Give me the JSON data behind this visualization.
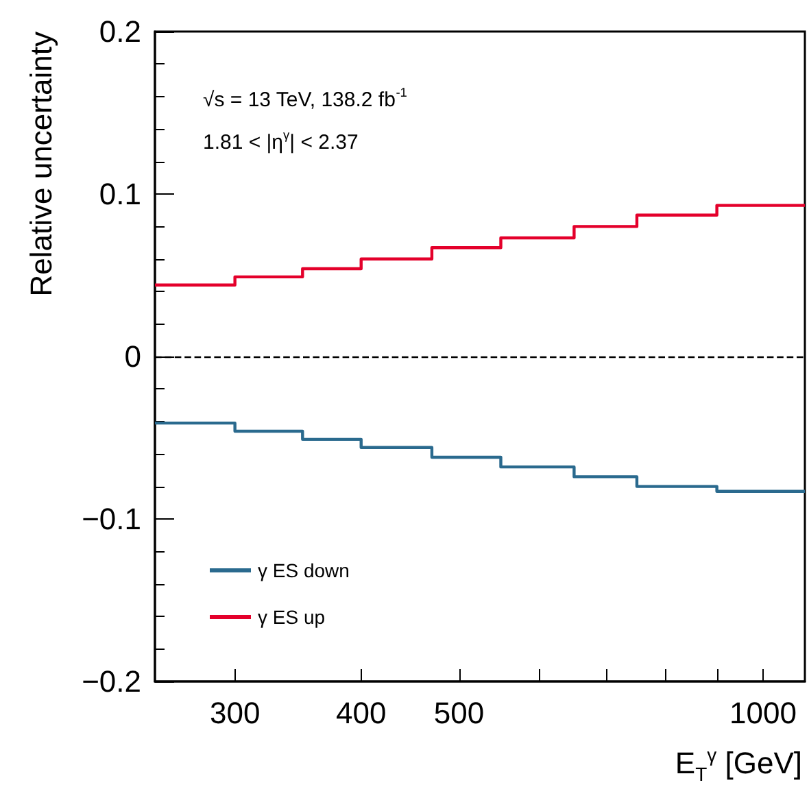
{
  "chart_data": {
    "type": "histogram",
    "xlabel": "E$_{T}$$^{γ}$ [GeV]",
    "ylabel": "Relative uncertainty",
    "annotations": [
      "√s = 13 TeV, 138.2 fb$^{-1}$",
      "1.81 < |η$^{γ}$| < 2.37"
    ],
    "bins": [
      250,
      300,
      350,
      400,
      470,
      550,
      650,
      750,
      900,
      1100
    ],
    "series": [
      {
        "name": "γ ES down",
        "color": "#2a6a8e",
        "values": [
          -0.041,
          -0.046,
          -0.051,
          -0.056,
          -0.062,
          -0.068,
          -0.074,
          -0.08,
          -0.083
        ]
      },
      {
        "name": "γ ES up",
        "color": "#e4002b",
        "values": [
          0.044,
          0.049,
          0.054,
          0.06,
          0.067,
          0.073,
          0.08,
          0.087,
          0.093
        ]
      }
    ],
    "log": "x",
    "xlim": [
      250,
      1100
    ],
    "xticks": [
      300,
      400,
      500,
      {
        "value": 600,
        "label": null
      },
      {
        "value": 700,
        "label": null
      },
      {
        "value": 800,
        "label": null
      },
      {
        "value": 900,
        "label": null
      },
      1000
    ],
    "ylim": [
      -0.2,
      0.2
    ],
    "yticks": [
      {
        "value": -0.2,
        "label": "−0.2"
      },
      {
        "value": -0.1,
        "label": "−0.1"
      },
      0,
      0.1,
      0.2
    ],
    "ref_lines": [
      {
        "axis": "y",
        "value": 0,
        "color": "#000000",
        "line_style": "dashed"
      }
    ],
    "legend": "bottom left",
    "grid": false,
    "line_style": "solid",
    "marker": "none"
  }
}
